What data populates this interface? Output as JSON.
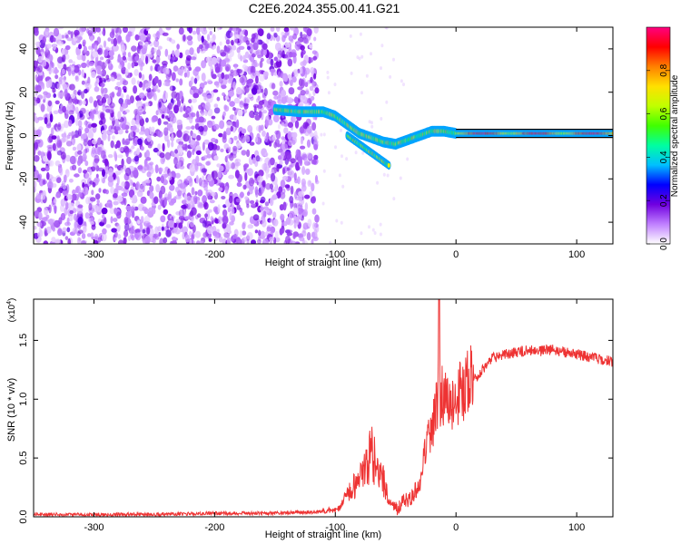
{
  "title": "C2E6.2024.355.00.41.G21",
  "chart_data": [
    {
      "type": "heatmap",
      "xlabel": "Height of straight line (km)",
      "ylabel": "Frequency (Hz)",
      "xlim": [
        -350,
        130
      ],
      "ylim": [
        -50,
        50
      ],
      "xticks": [
        -300,
        -200,
        -100,
        0,
        100
      ],
      "yticks": [
        -40,
        -20,
        0,
        20,
        40
      ],
      "colorbar": {
        "label": "Normalized spectral amplitude",
        "range": [
          0,
          1
        ],
        "ticks": [
          "0.0",
          "0.2",
          "0.4",
          "0.6",
          "0.8"
        ],
        "colors": [
          "#ffffff",
          "#c080ff",
          "#7000e0",
          "#0000ff",
          "#00c0ff",
          "#00ffa0",
          "#40ff00",
          "#c0ff00",
          "#ffe000",
          "#ff8000",
          "#ff0000",
          "#ff0080"
        ]
      },
      "noise_region": {
        "x_range": [
          -350,
          -115
        ],
        "f_range": [
          -50,
          50
        ]
      },
      "ridge": [
        {
          "x": -150,
          "f": 12
        },
        {
          "x": -130,
          "f": 11
        },
        {
          "x": -110,
          "f": 11
        },
        {
          "x": -100,
          "f": 9
        },
        {
          "x": -90,
          "f": 5
        },
        {
          "x": -80,
          "f": 1
        },
        {
          "x": -70,
          "f": -1
        },
        {
          "x": -60,
          "f": -3
        },
        {
          "x": -50,
          "f": -4
        },
        {
          "x": -40,
          "f": -2
        },
        {
          "x": -30,
          "f": 0
        },
        {
          "x": -20,
          "f": 2
        },
        {
          "x": -10,
          "f": 2
        },
        {
          "x": 0,
          "f": 1
        },
        {
          "x": 20,
          "f": 1
        },
        {
          "x": 60,
          "f": 1
        },
        {
          "x": 100,
          "f": 1
        },
        {
          "x": 130,
          "f": 1
        }
      ],
      "branch": [
        {
          "x": -90,
          "f": 0
        },
        {
          "x": -80,
          "f": -4
        },
        {
          "x": -70,
          "f": -8
        },
        {
          "x": -60,
          "f": -12
        },
        {
          "x": -55,
          "f": -14
        }
      ]
    },
    {
      "type": "line",
      "xlabel": "Height of straight line (km)",
      "ylabel": "SNR (10 * v/v)",
      "yscale_label": "(x10",
      "yscale_exp": "4",
      "yscale_close": ")",
      "xlim": [
        -350,
        130
      ],
      "ylim": [
        0,
        1.85
      ],
      "xticks": [
        -300,
        -200,
        -100,
        0,
        100
      ],
      "yticks": [
        "0.0",
        "0.5",
        "1.0",
        "1.5"
      ],
      "color": "#ee3333",
      "x": [
        -350,
        -300,
        -250,
        -200,
        -150,
        -120,
        -100,
        -95,
        -90,
        -85,
        -80,
        -75,
        -72,
        -70,
        -68,
        -65,
        -62,
        -60,
        -55,
        -50,
        -45,
        -40,
        -35,
        -30,
        -28,
        -25,
        -22,
        -20,
        -18,
        -15,
        -14,
        -13,
        -12,
        -10,
        -8,
        -5,
        0,
        10,
        20,
        30,
        40,
        50,
        60,
        70,
        80,
        90,
        100,
        110,
        120,
        130
      ],
      "values": [
        0.02,
        0.02,
        0.02,
        0.03,
        0.03,
        0.04,
        0.06,
        0.1,
        0.18,
        0.25,
        0.3,
        0.4,
        0.5,
        0.55,
        0.48,
        0.42,
        0.38,
        0.3,
        0.12,
        0.08,
        0.1,
        0.15,
        0.2,
        0.28,
        0.45,
        0.6,
        0.7,
        0.78,
        0.85,
        0.95,
        1.85,
        0.9,
        1.05,
        1.0,
        1.05,
        1.0,
        1.05,
        1.12,
        1.22,
        1.35,
        1.38,
        1.4,
        1.42,
        1.41,
        1.42,
        1.4,
        1.38,
        1.36,
        1.34,
        1.32
      ]
    }
  ]
}
